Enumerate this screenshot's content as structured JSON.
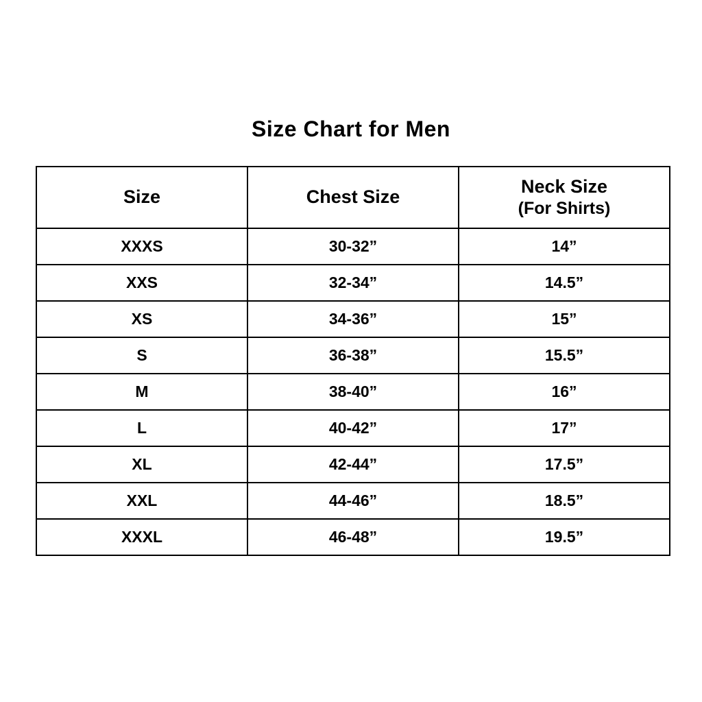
{
  "title": "Size Chart for Men",
  "table": {
    "headers": {
      "size": "Size",
      "chest": "Chest Size",
      "neck_line1": "Neck Size",
      "neck_line2": "(For Shirts)"
    }
  },
  "chart_data": {
    "type": "table",
    "title": "Size Chart for Men",
    "columns": [
      "Size",
      "Chest Size",
      "Neck Size (For Shirts)"
    ],
    "rows": [
      {
        "size": "XXXS",
        "chest": "30-32”",
        "neck": "14”"
      },
      {
        "size": "XXS",
        "chest": "32-34”",
        "neck": "14.5”"
      },
      {
        "size": "XS",
        "chest": "34-36”",
        "neck": "15”"
      },
      {
        "size": "S",
        "chest": "36-38”",
        "neck": "15.5”"
      },
      {
        "size": "M",
        "chest": "38-40”",
        "neck": "16”"
      },
      {
        "size": "L",
        "chest": "40-42”",
        "neck": "17”"
      },
      {
        "size": "XL",
        "chest": "42-44”",
        "neck": "17.5”"
      },
      {
        "size": "XXL",
        "chest": "44-46”",
        "neck": "18.5”"
      },
      {
        "size": "XXXL",
        "chest": "46-48”",
        "neck": "19.5”"
      }
    ],
    "layout": {
      "grid": true,
      "border_color": "#000000",
      "background": "#ffffff",
      "text_color": "#000000"
    }
  }
}
